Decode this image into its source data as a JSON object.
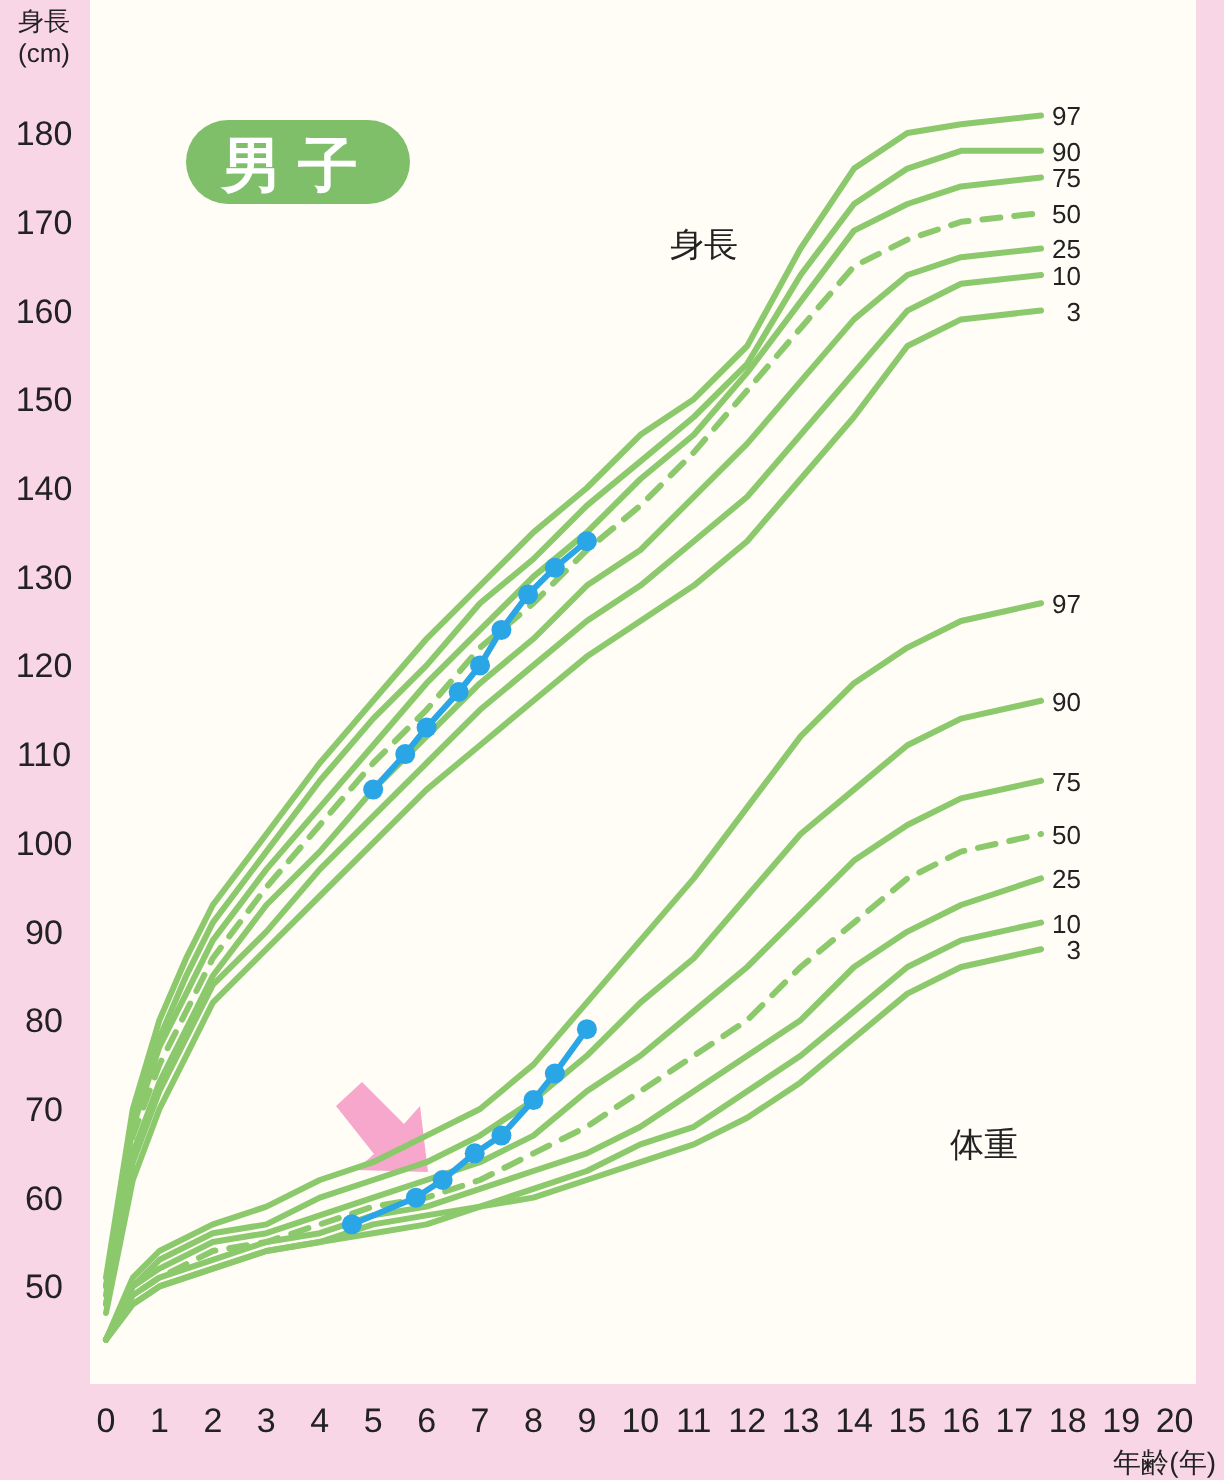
{
  "chart_data": {
    "type": "line",
    "title": "男子",
    "ylabel": "身長 (cm)",
    "xlabel": "年齢(年)",
    "xlim": [
      -0.3,
      20.4
    ],
    "ylim": [
      39,
      195
    ],
    "xticks": [
      0,
      1,
      2,
      3,
      4,
      5,
      6,
      7,
      8,
      9,
      10,
      11,
      12,
      13,
      14,
      15,
      16,
      17,
      18,
      19,
      20
    ],
    "yticks": [
      50,
      60,
      70,
      80,
      90,
      100,
      110,
      120,
      130,
      140,
      150,
      160,
      170,
      180
    ],
    "grid": false,
    "annotations": [
      "身長",
      "体重"
    ],
    "series": [
      {
        "name": "97",
        "color": "#8cc96c",
        "line_style": "solid",
        "marker": "none",
        "x": [
          0,
          0.5,
          1,
          1.5,
          2,
          3,
          4,
          5,
          6,
          7,
          8,
          9,
          10,
          11,
          12,
          13,
          14,
          15,
          16,
          17.5
        ],
        "values": [
          51,
          70,
          80,
          87,
          93,
          101,
          109,
          116,
          123,
          129,
          135,
          140,
          146,
          150,
          156,
          167,
          176,
          180,
          181,
          182
        ]
      },
      {
        "name": "90",
        "color": "#8cc96c",
        "line_style": "solid",
        "marker": "none",
        "x": [
          0,
          0.5,
          1,
          1.5,
          2,
          3,
          4,
          5,
          6,
          7,
          8,
          9,
          10,
          11,
          12,
          13,
          14,
          15,
          16,
          17.5
        ],
        "values": [
          50,
          69,
          78,
          85,
          91,
          99,
          107,
          114,
          120,
          127,
          132,
          138,
          143,
          148,
          154,
          164,
          172,
          176,
          178,
          178
        ]
      },
      {
        "name": "75",
        "color": "#8cc96c",
        "line_style": "solid",
        "marker": "none",
        "x": [
          0,
          0.5,
          1,
          1.5,
          2,
          3,
          4,
          5,
          6,
          7,
          8,
          9,
          10,
          11,
          12,
          13,
          14,
          15,
          16,
          17.5
        ],
        "values": [
          50,
          68,
          77,
          83,
          89,
          97,
          104,
          111,
          118,
          124,
          130,
          135,
          141,
          146,
          153,
          161,
          169,
          172,
          174,
          175
        ]
      },
      {
        "name": "50",
        "color": "#8cc96c",
        "line_style": "dashed",
        "marker": "none",
        "x": [
          0,
          0.5,
          1,
          1.5,
          2,
          3,
          4,
          5,
          6,
          7,
          8,
          9,
          10,
          11,
          12,
          13,
          14,
          15,
          16,
          17.5
        ],
        "values": [
          49,
          67,
          75,
          81,
          87,
          95,
          102,
          109,
          115,
          122,
          127,
          133,
          138,
          144,
          151,
          158,
          165,
          168,
          170,
          171
        ]
      },
      {
        "name": "25",
        "color": "#8cc96c",
        "line_style": "solid",
        "marker": "none",
        "x": [
          0,
          0.5,
          1,
          1.5,
          2,
          3,
          4,
          5,
          6,
          7,
          8,
          9,
          10,
          11,
          12,
          13,
          14,
          15,
          16,
          17.5
        ],
        "values": [
          48,
          65,
          73,
          79,
          85,
          93,
          99,
          106,
          112,
          118,
          123,
          129,
          133,
          139,
          145,
          152,
          159,
          164,
          166,
          167
        ]
      },
      {
        "name": "10",
        "color": "#8cc96c",
        "line_style": "solid",
        "marker": "none",
        "x": [
          0,
          0.5,
          1,
          1.5,
          2,
          3,
          4,
          5,
          6,
          7,
          8,
          9,
          10,
          11,
          12,
          13,
          14,
          15,
          16,
          17.5
        ],
        "values": [
          48,
          64,
          72,
          78,
          84,
          90,
          97,
          103,
          109,
          115,
          120,
          125,
          129,
          134,
          139,
          146,
          153,
          160,
          163,
          164
        ]
      },
      {
        "name": "3",
        "color": "#8cc96c",
        "line_style": "solid",
        "marker": "none",
        "x": [
          0,
          0.5,
          1,
          1.5,
          2,
          3,
          4,
          5,
          6,
          7,
          8,
          9,
          10,
          11,
          12,
          13,
          14,
          15,
          16,
          17.5
        ],
        "values": [
          47,
          62,
          70,
          76,
          82,
          88,
          94,
          100,
          106,
          111,
          116,
          121,
          125,
          129,
          134,
          141,
          148,
          156,
          159,
          160
        ]
      },
      {
        "name": "97",
        "color": "#8cc96c",
        "line_style": "solid",
        "marker": "none",
        "x": [
          0,
          0.5,
          1,
          2,
          3,
          4,
          5,
          6,
          7,
          8,
          9,
          10,
          11,
          12,
          13,
          14,
          15,
          16,
          17.5
        ],
        "values": [
          44,
          51,
          54,
          57,
          59,
          62,
          64,
          67,
          70,
          75,
          82,
          89,
          96,
          104,
          112,
          118,
          122,
          125,
          127
        ]
      },
      {
        "name": "90",
        "color": "#8cc96c",
        "line_style": "solid",
        "marker": "none",
        "x": [
          0,
          0.5,
          1,
          2,
          3,
          4,
          5,
          6,
          7,
          8,
          9,
          10,
          11,
          12,
          13,
          14,
          15,
          16,
          17.5
        ],
        "values": [
          44,
          50,
          53,
          56,
          57,
          60,
          62,
          64,
          67,
          71,
          76,
          82,
          87,
          94,
          101,
          106,
          111,
          114,
          116
        ]
      },
      {
        "name": "75",
        "color": "#8cc96c",
        "line_style": "solid",
        "marker": "none",
        "x": [
          0,
          0.5,
          1,
          2,
          3,
          4,
          5,
          6,
          7,
          8,
          9,
          10,
          11,
          12,
          13,
          14,
          15,
          16,
          17.5
        ],
        "values": [
          44,
          50,
          52,
          55,
          56,
          58,
          60,
          62,
          64,
          67,
          72,
          76,
          81,
          86,
          92,
          98,
          102,
          105,
          107
        ]
      },
      {
        "name": "50",
        "color": "#8cc96c",
        "line_style": "dashed",
        "marker": "none",
        "x": [
          0,
          0.5,
          1,
          2,
          3,
          4,
          5,
          6,
          7,
          8,
          9,
          10,
          11,
          12,
          13,
          14,
          15,
          16,
          17.5
        ],
        "values": [
          44,
          49,
          51,
          54,
          55,
          57,
          59,
          60,
          62,
          65,
          68,
          72,
          76,
          80,
          86,
          91,
          96,
          99,
          101
        ]
      },
      {
        "name": "25",
        "color": "#8cc96c",
        "line_style": "solid",
        "marker": "none",
        "x": [
          0,
          0.5,
          1,
          2,
          3,
          4,
          5,
          6,
          7,
          8,
          9,
          10,
          11,
          12,
          13,
          14,
          15,
          16,
          17.5
        ],
        "values": [
          44,
          49,
          51,
          53,
          55,
          56,
          58,
          59,
          61,
          63,
          65,
          68,
          72,
          76,
          80,
          86,
          90,
          93,
          96
        ]
      },
      {
        "name": "10",
        "color": "#8cc96c",
        "line_style": "solid",
        "marker": "none",
        "x": [
          0,
          0.5,
          1,
          2,
          3,
          4,
          5,
          6,
          7,
          8,
          9,
          10,
          11,
          12,
          13,
          14,
          15,
          16,
          17.5
        ],
        "values": [
          44,
          48,
          50,
          52,
          54,
          55,
          57,
          58,
          59,
          61,
          63,
          66,
          68,
          72,
          76,
          81,
          86,
          89,
          91
        ]
      },
      {
        "name": "3",
        "color": "#8cc96c",
        "line_style": "solid",
        "marker": "none",
        "x": [
          0,
          0.5,
          1,
          2,
          3,
          4,
          5,
          6,
          7,
          8,
          9,
          10,
          11,
          12,
          13,
          14,
          15,
          16,
          17.5
        ],
        "values": [
          44,
          48,
          50,
          52,
          54,
          55,
          56,
          57,
          59,
          60,
          62,
          64,
          66,
          69,
          73,
          78,
          83,
          86,
          88
        ]
      },
      {
        "color": "#2aa5e6",
        "line_style": "solid",
        "marker": "circle",
        "x": [
          5.0,
          5.6,
          6.0,
          6.6,
          7.0,
          7.4,
          7.9,
          8.4,
          9.0
        ],
        "values": [
          106,
          110,
          113,
          117,
          120,
          124,
          128,
          131,
          134
        ]
      },
      {
        "color": "#2aa5e6",
        "line_style": "solid",
        "marker": "circle",
        "x": [
          4.6,
          5.8,
          6.3,
          6.9,
          7.4,
          8.0,
          8.4,
          9.0
        ],
        "values": [
          57,
          60,
          62,
          65,
          67,
          71,
          74,
          79
        ]
      }
    ]
  }
}
